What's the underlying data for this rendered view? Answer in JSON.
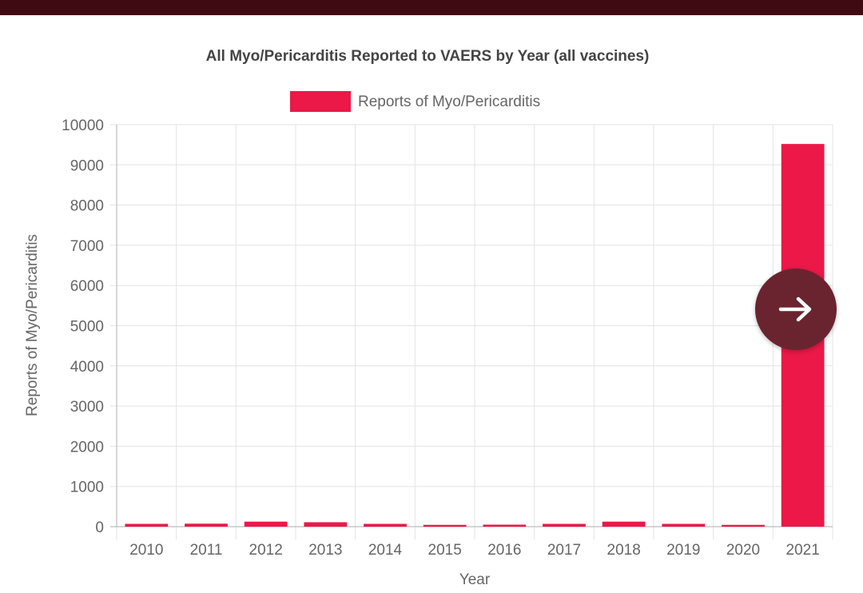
{
  "colors": {
    "bar": "#eb1848",
    "header_bar": "#3f0a12",
    "nav_button": "#6a2430"
  },
  "nav": {
    "next_icon": "arrow-right-icon"
  },
  "chart_data": {
    "type": "bar",
    "title": "All Myo/Pericarditis Reported to VAERS by Year (all vaccines)",
    "xlabel": "Year",
    "ylabel": "Reports of Myo/Pericarditis",
    "categories": [
      "2010",
      "2011",
      "2012",
      "2013",
      "2014",
      "2015",
      "2016",
      "2017",
      "2018",
      "2019",
      "2020",
      "2021"
    ],
    "series": [
      {
        "name": "Reports of Myo/Pericarditis",
        "values": [
          70,
          75,
          125,
          110,
          70,
          45,
          50,
          70,
          125,
          70,
          45,
          9520
        ]
      }
    ],
    "ylim": [
      0,
      10000
    ],
    "yticks": [
      0,
      1000,
      2000,
      3000,
      4000,
      5000,
      6000,
      7000,
      8000,
      9000,
      10000
    ],
    "grid": true,
    "legend_position": "top"
  }
}
